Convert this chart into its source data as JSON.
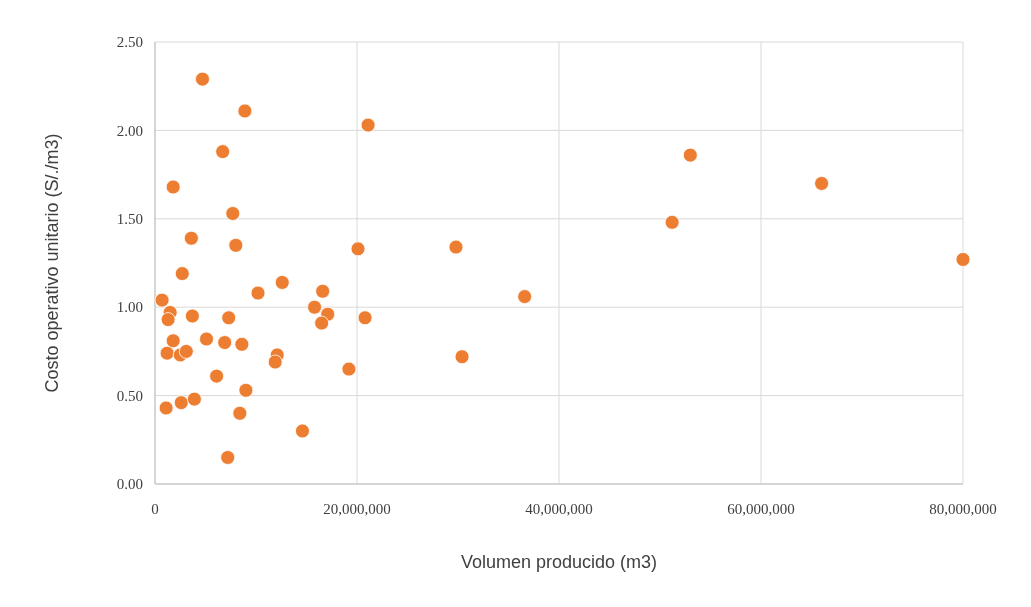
{
  "chart_data": {
    "type": "scatter",
    "xlabel": "Volumen producido (m3)",
    "ylabel": "Costo operativo unitario (S/./m3)",
    "xlim": [
      0,
      80000000
    ],
    "ylim": [
      0,
      2.5
    ],
    "xticks": [
      0,
      {
        "value": 20000000,
        "label": "20,000,000"
      },
      {
        "value": 40000000,
        "label": "40,000,000"
      },
      {
        "value": 60000000,
        "label": "60,000,000"
      },
      {
        "value": 80000000,
        "label": "80,000,000"
      }
    ],
    "yticks": [
      {
        "value": 0,
        "label": "0.00"
      },
      {
        "value": 0.5,
        "label": "0.50"
      },
      {
        "value": 1,
        "label": "1.00"
      },
      {
        "value": 1.5,
        "label": "1.50"
      },
      {
        "value": 2,
        "label": "2.00"
      },
      {
        "value": 2.5,
        "label": "2.50"
      }
    ],
    "grid": true,
    "marker": "circle",
    "series": [
      {
        "color": "#ed7d31",
        "x": [
          4700000,
          8900000,
          21100000,
          6700000,
          1800000,
          7700000,
          3600000,
          8000000,
          20100000,
          2700000,
          700000,
          10200000,
          12600000,
          16600000,
          15800000,
          17100000,
          16500000,
          20800000,
          1500000,
          1300000,
          3700000,
          7300000,
          1800000,
          5100000,
          6900000,
          8600000,
          1200000,
          2500000,
          3100000,
          12100000,
          11900000,
          19200000,
          6100000,
          9000000,
          1100000,
          2600000,
          3900000,
          8400000,
          14600000,
          7200000,
          53000000,
          66000000,
          51200000,
          80000000,
          29800000,
          36600000,
          30400000
        ],
        "values": [
          2.29,
          2.11,
          2.03,
          1.88,
          1.68,
          1.53,
          1.39,
          1.35,
          1.33,
          1.19,
          1.04,
          1.08,
          1.14,
          1.09,
          1.0,
          0.96,
          0.91,
          0.94,
          0.97,
          0.93,
          0.95,
          0.94,
          0.81,
          0.82,
          0.8,
          0.79,
          0.74,
          0.73,
          0.75,
          0.73,
          0.69,
          0.65,
          0.61,
          0.53,
          0.43,
          0.46,
          0.48,
          0.4,
          0.3,
          0.15,
          1.86,
          1.7,
          1.48,
          1.27,
          1.34,
          1.06,
          0.72
        ]
      }
    ]
  }
}
